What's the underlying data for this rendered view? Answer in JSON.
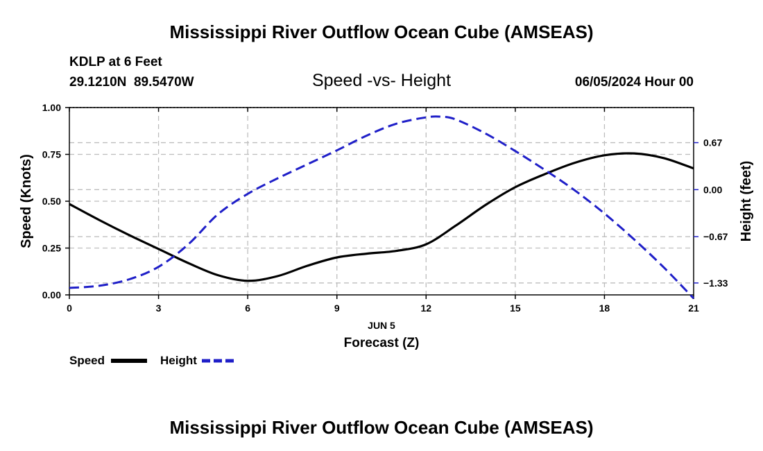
{
  "page": {
    "title": "Mississippi River Outflow Ocean Cube (AMSEAS)",
    "footer_title": "Mississippi River Outflow Ocean Cube (AMSEAS)",
    "station_line": "KDLP at 6 Feet",
    "coords_line": "29.1210N  89.5470W",
    "date_line": "06/05/2024 Hour 00"
  },
  "chart_data": {
    "type": "line",
    "title": "Speed -vs- Height",
    "xlabel": "Forecast (Z)",
    "xsublabel": "JUN 5",
    "ylabel": "Speed (Knots)",
    "y2label": "Height (feet)",
    "xlim": [
      0,
      21
    ],
    "ylim": [
      0,
      1
    ],
    "y2lim": [
      -1.5,
      1.17
    ],
    "x_ticks": [
      "0",
      "3",
      "6",
      "9",
      "12",
      "15",
      "18",
      "21"
    ],
    "y_ticks": [
      "0.00",
      "0.25",
      "0.50",
      "0.75",
      "1.00"
    ],
    "y2_ticks": [
      "-1.33",
      "-0.67",
      "0.00",
      "0.67"
    ],
    "grid": true,
    "series": [
      {
        "name": "Speed",
        "axis": "left",
        "color": "#000000",
        "style": "solid",
        "x": [
          0,
          1,
          2,
          3,
          4,
          5,
          6,
          7,
          8,
          9,
          10,
          11,
          12,
          13,
          14,
          15,
          16,
          17,
          18,
          19,
          20,
          21
        ],
        "values": [
          0.485,
          0.4,
          0.32,
          0.245,
          0.17,
          0.105,
          0.075,
          0.1,
          0.155,
          0.2,
          0.22,
          0.235,
          0.27,
          0.37,
          0.48,
          0.575,
          0.645,
          0.705,
          0.745,
          0.755,
          0.73,
          0.675
        ]
      },
      {
        "name": "Height",
        "axis": "right",
        "color": "#1f1fc8",
        "style": "dashed",
        "x": [
          0,
          1,
          2,
          3,
          4,
          5,
          6,
          7,
          8,
          9,
          10,
          11,
          12,
          12.5,
          13,
          14,
          15,
          16,
          17,
          18,
          19,
          20,
          21
        ],
        "values": [
          -1.4,
          -1.37,
          -1.28,
          -1.1,
          -0.78,
          -0.35,
          -0.06,
          0.16,
          0.36,
          0.56,
          0.77,
          0.94,
          1.03,
          1.04,
          1.0,
          0.8,
          0.55,
          0.28,
          -0.01,
          -0.34,
          -0.71,
          -1.11,
          -1.55
        ]
      }
    ],
    "legend": [
      {
        "label": "Speed",
        "color": "#000000",
        "style": "solid"
      },
      {
        "label": "Height",
        "color": "#1f1fc8",
        "style": "dashed"
      }
    ]
  }
}
